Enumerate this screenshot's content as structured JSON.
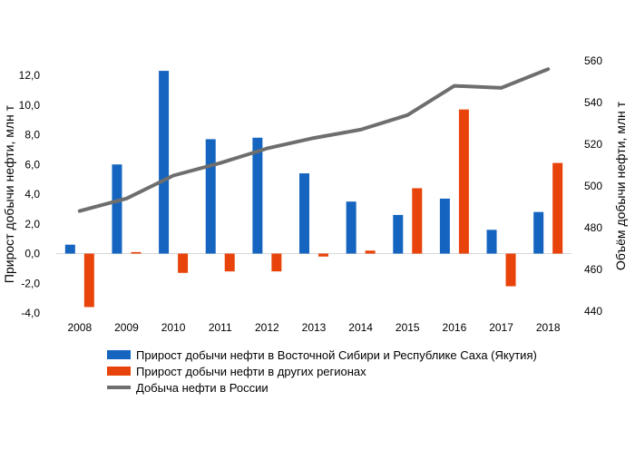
{
  "chart_data": {
    "type": "bar",
    "title": "",
    "categories": [
      "2008",
      "2009",
      "2010",
      "2011",
      "2012",
      "2013",
      "2014",
      "2015",
      "2016",
      "2017",
      "2018"
    ],
    "y_left": {
      "label": "Прирост добычи нефти, млн т",
      "ylim": [
        -4,
        12
      ],
      "ticks": [
        "-4,0",
        "-2,0",
        "0,0",
        "2,0",
        "4,0",
        "6,0",
        "8,0",
        "10,0",
        "12,0"
      ],
      "tick_values": [
        -4,
        -2,
        0,
        2,
        4,
        6,
        8,
        10,
        12
      ]
    },
    "y_right": {
      "label": "Объём добычи нефти, млн т",
      "ylim": [
        440,
        560
      ],
      "ticks": [
        "440",
        "460",
        "480",
        "500",
        "520",
        "540",
        "560"
      ],
      "tick_values": [
        440,
        460,
        480,
        500,
        520,
        540,
        560
      ]
    },
    "series": [
      {
        "name": "Прирост добычи нефти в Восточной Сибири и Республике Саха (Якутия)",
        "type": "bar",
        "axis": "left",
        "color": "#1565C0",
        "values": [
          0.6,
          6.0,
          12.3,
          7.7,
          7.8,
          5.4,
          3.5,
          2.6,
          3.7,
          1.6,
          2.8
        ]
      },
      {
        "name": "Прирост добычи нефти в других регионах",
        "type": "bar",
        "axis": "left",
        "color": "#E8430A",
        "values": [
          -3.6,
          0.1,
          -1.3,
          -1.2,
          -1.2,
          -0.2,
          0.2,
          4.4,
          9.7,
          -2.2,
          6.1
        ]
      },
      {
        "name": "Добыча нефти в России",
        "type": "line",
        "axis": "right",
        "color": "#6E6E6E",
        "values": [
          488,
          494,
          505,
          511,
          518,
          523,
          527,
          534,
          548,
          547,
          556
        ]
      }
    ],
    "grid": false,
    "legend_position": "bottom"
  }
}
